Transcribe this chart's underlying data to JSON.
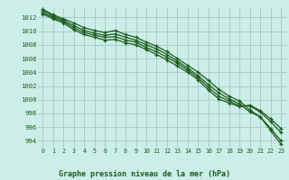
{
  "title": "Graphe pression niveau de la mer (hPa)",
  "bg_color": "#cceee8",
  "grid_color": "#aacccc",
  "line_color": "#1a5c1a",
  "x_ticks": [
    0,
    1,
    2,
    3,
    4,
    5,
    6,
    7,
    8,
    9,
    10,
    11,
    12,
    13,
    14,
    15,
    16,
    17,
    18,
    19,
    20,
    21,
    22,
    23
  ],
  "y_ticks": [
    994,
    996,
    998,
    1000,
    1002,
    1004,
    1006,
    1008,
    1010,
    1012
  ],
  "ylim": [
    993.0,
    1013.5
  ],
  "xlim": [
    -0.5,
    23.5
  ],
  "series": [
    [
      1013.2,
      1012.4,
      1011.8,
      1011.2,
      1010.5,
      1010.1,
      1009.8,
      1010.1,
      1009.5,
      1009.1,
      1008.4,
      1007.8,
      1007.0,
      1006.0,
      1005.0,
      1004.0,
      1002.8,
      1001.5,
      1000.5,
      999.8,
      998.5,
      997.5,
      995.5,
      993.5
    ],
    [
      1013.0,
      1012.2,
      1011.6,
      1010.8,
      1010.1,
      1009.7,
      1009.4,
      1009.6,
      1009.1,
      1008.7,
      1008.0,
      1007.4,
      1006.6,
      1005.6,
      1004.6,
      1003.5,
      1002.2,
      1001.0,
      1000.1,
      999.4,
      998.2,
      997.5,
      995.8,
      994.0
    ],
    [
      1012.7,
      1012.0,
      1011.4,
      1010.5,
      1009.8,
      1009.4,
      1009.1,
      1009.2,
      1008.7,
      1008.4,
      1007.6,
      1007.0,
      1006.2,
      1005.3,
      1004.3,
      1003.2,
      1001.8,
      1000.5,
      999.8,
      999.1,
      999.1,
      998.2,
      996.8,
      995.2
    ],
    [
      1012.5,
      1011.8,
      1011.2,
      1010.2,
      1009.5,
      1009.1,
      1008.7,
      1008.8,
      1008.3,
      1008.0,
      1007.3,
      1006.6,
      1005.8,
      1004.9,
      1004.0,
      1002.9,
      1001.4,
      1000.1,
      999.5,
      999.0,
      999.2,
      998.4,
      997.2,
      995.8
    ]
  ]
}
